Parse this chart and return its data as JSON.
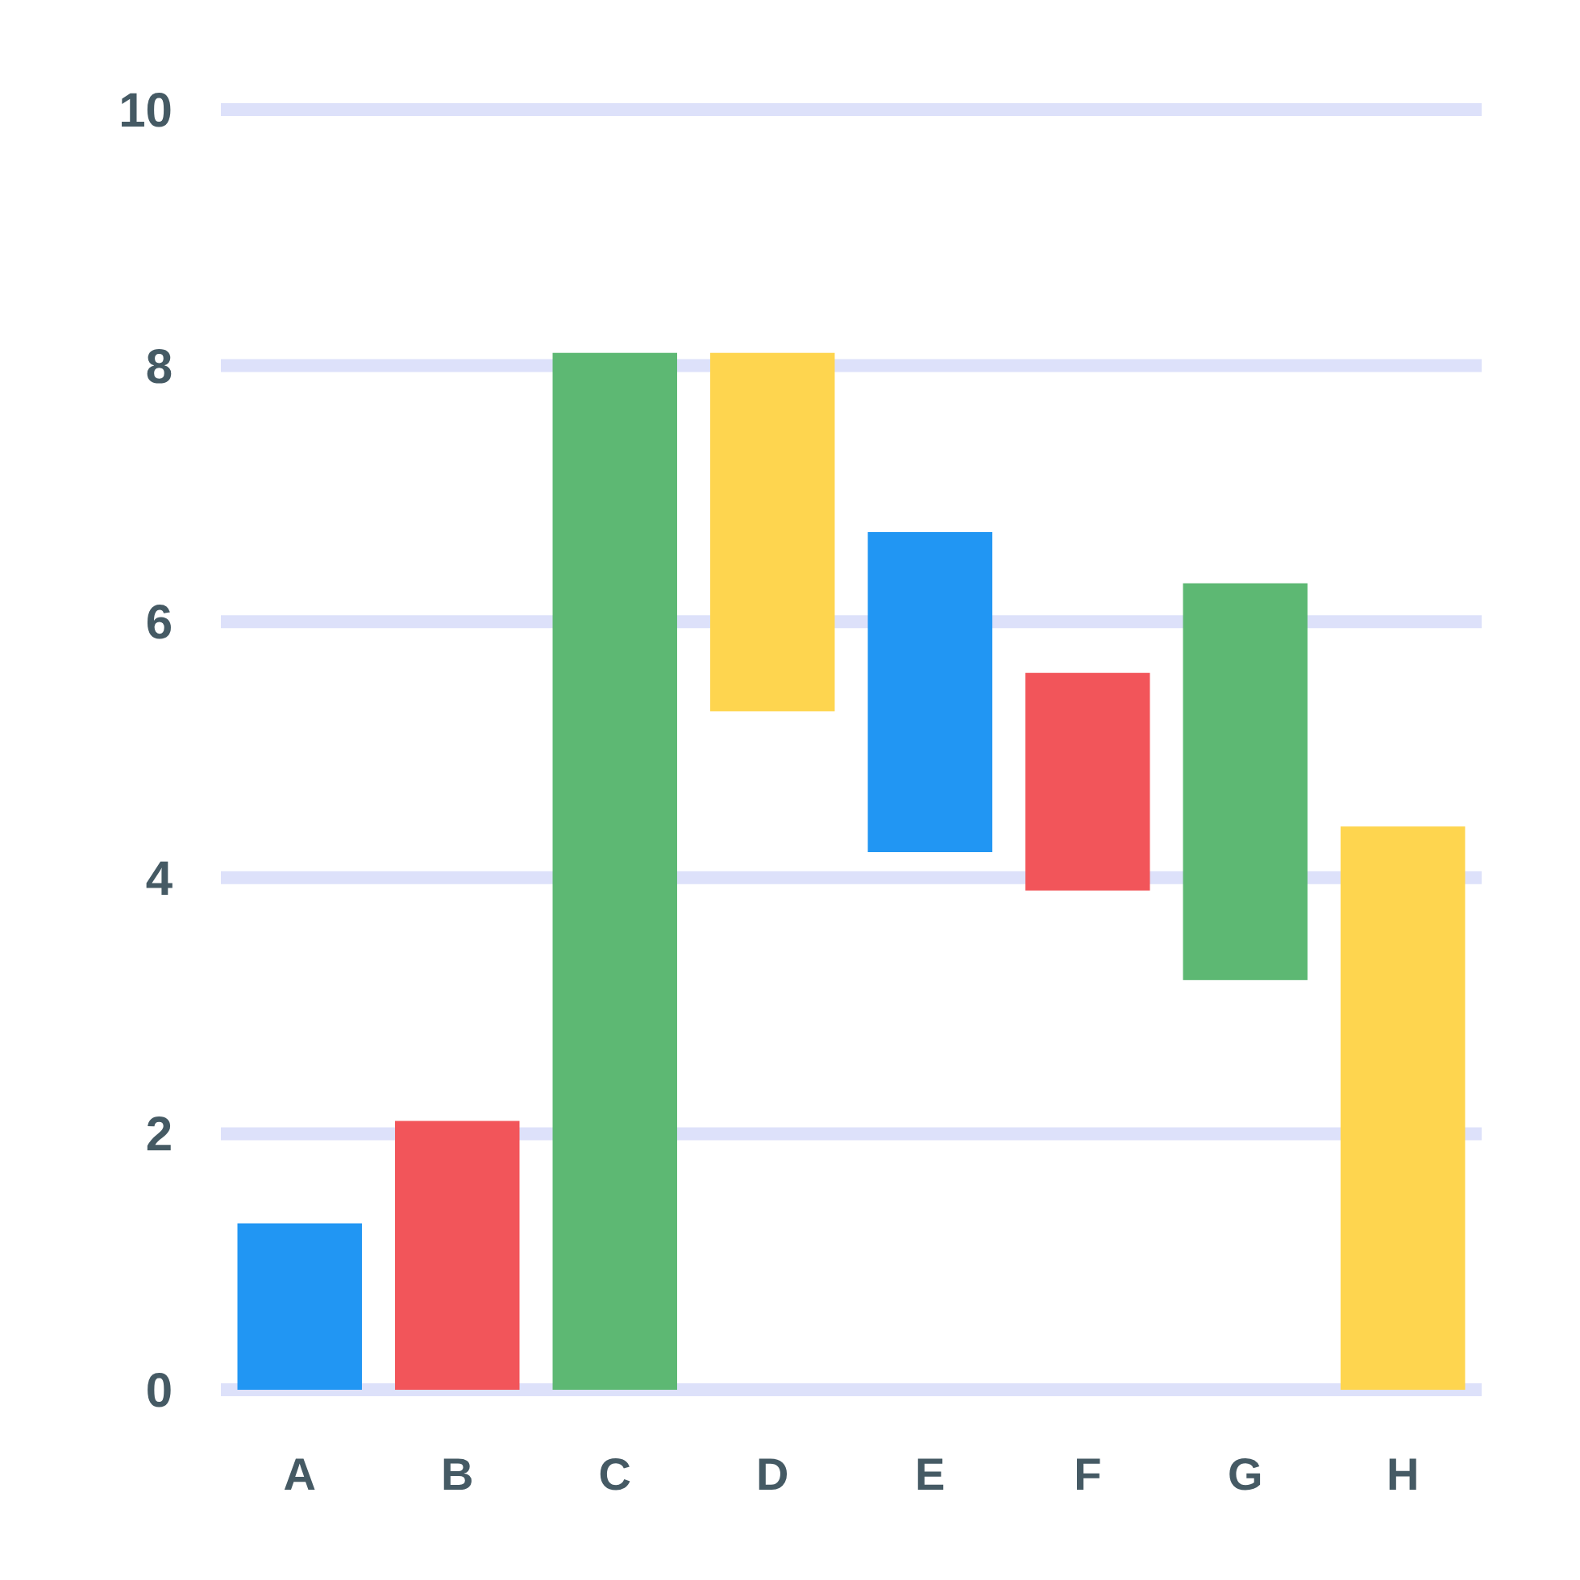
{
  "chart_data": {
    "type": "bar",
    "categories": [
      "A",
      "B",
      "C",
      "D",
      "E",
      "F",
      "G",
      "H"
    ],
    "values": [
      1.3,
      2.1,
      8.1,
      2.8,
      2.5,
      1.7,
      3.1,
      4.4
    ],
    "base": [
      0,
      0,
      0,
      5.3,
      4.2,
      3.9,
      3.2,
      0
    ],
    "colors": [
      "#2196f3",
      "#f2555a",
      "#5db873",
      "#fed54f",
      "#2196f3",
      "#f2555a",
      "#5db873",
      "#fed54f"
    ],
    "ylim": [
      0,
      10
    ],
    "yticks": [
      0,
      2,
      4,
      6,
      8,
      10
    ],
    "grid": "y"
  }
}
